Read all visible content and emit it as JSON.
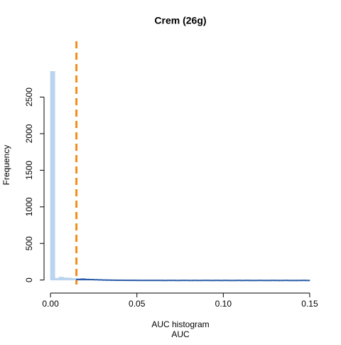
{
  "chart_data": {
    "type": "histogram",
    "title": "Crem (26g)",
    "x_label": "AUC histogram",
    "subtitle": "AUC",
    "y_label": "Frequency",
    "bins": [
      0,
      0.0025,
      0.005,
      0.0075,
      0.01,
      0.0125,
      0.015,
      0.0175,
      0.02,
      0.0225,
      0.025,
      0.0275,
      0.03,
      0.0325,
      0.035,
      0.0375,
      0.04,
      0.0425,
      0.045,
      0.0475,
      0.05,
      0.0525,
      0.055,
      0.0575,
      0.06,
      0.0625,
      0.065,
      0.0675,
      0.07,
      0.0725,
      0.075,
      0.0775,
      0.08,
      0.0825,
      0.085,
      0.0875,
      0.09,
      0.0925,
      0.095,
      0.0975,
      0.1,
      0.1025,
      0.105,
      0.1075,
      0.11,
      0.1125,
      0.115,
      0.1175,
      0.12,
      0.1225,
      0.125,
      0.1275,
      0.13,
      0.1325,
      0.135,
      0.1375,
      0.14,
      0.1425,
      0.145,
      0.1475,
      0.15
    ],
    "values": [
      2850,
      25,
      40,
      30,
      28,
      22,
      15,
      18,
      14,
      12,
      10,
      8,
      6,
      5,
      4,
      3,
      3,
      2,
      2,
      2,
      1,
      1,
      1,
      1,
      1,
      1,
      0,
      1,
      1,
      0,
      1,
      1,
      0,
      1,
      0,
      1,
      1,
      0,
      1,
      0,
      1,
      0,
      0,
      1,
      0,
      1,
      0,
      0,
      1,
      0,
      0,
      1,
      0,
      0,
      1,
      0,
      0,
      0,
      1,
      0
    ],
    "below_color": "#b9d4ee",
    "above_color": "#2a5ca8",
    "vline": 0.015,
    "vline_color": "#f28e1c",
    "xlim": [
      -0.0062,
      0.1566
    ],
    "ylim": [
      -110,
      3000
    ],
    "xticks": [
      {
        "value": 0,
        "label": "0.00"
      },
      0.05,
      {
        "value": 0.1,
        "label": "0.10"
      },
      0.15
    ],
    "yticks": [
      0,
      500,
      1000,
      1500,
      2000,
      2500
    ]
  }
}
